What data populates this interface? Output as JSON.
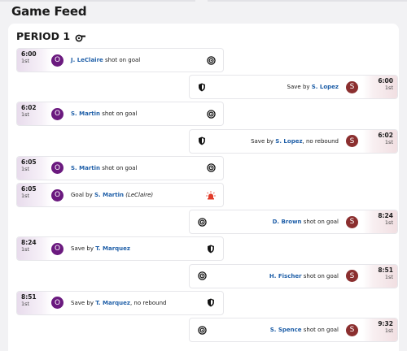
{
  "header": {
    "title": "Game Feed"
  },
  "period": {
    "title": "PERIOD 1",
    "icon": "whistle-icon"
  },
  "colors": {
    "home": "#6b1a7f",
    "away": "#8b2f2f",
    "link": "#1f5fa8"
  },
  "events": [
    {
      "side": "left",
      "time": "6:00",
      "period": "1st",
      "badge": "O",
      "pre": "",
      "player": "J. LeClaire",
      "post": " shot on goal",
      "assist": "",
      "icon": "target-icon"
    },
    {
      "side": "right",
      "time": "6:00",
      "period": "1st",
      "badge": "S",
      "pre": "Save by ",
      "player": "S. Lopez",
      "post": "",
      "assist": "",
      "icon": "shield-icon"
    },
    {
      "side": "left",
      "time": "6:02",
      "period": "1st",
      "badge": "O",
      "pre": "",
      "player": "S. Martin",
      "post": " shot on goal",
      "assist": "",
      "icon": "target-icon"
    },
    {
      "side": "right",
      "time": "6:02",
      "period": "1st",
      "badge": "S",
      "pre": "Save by ",
      "player": "S. Lopez",
      "post": ", no rebound",
      "assist": "",
      "icon": "shield-icon"
    },
    {
      "side": "left",
      "time": "6:05",
      "period": "1st",
      "badge": "O",
      "pre": "",
      "player": "S. Martin",
      "post": " shot on goal",
      "assist": "",
      "icon": "target-icon"
    },
    {
      "side": "left",
      "time": "6:05",
      "period": "1st",
      "badge": "O",
      "pre": "Goal by ",
      "player": "S. Martin",
      "post": " ",
      "assist": "(LeClaire)",
      "icon": "goal-light-icon"
    },
    {
      "side": "right",
      "time": "8:24",
      "period": "1st",
      "badge": "S",
      "pre": "",
      "player": "D. Brown",
      "post": " shot on goal",
      "assist": "",
      "icon": "target-icon"
    },
    {
      "side": "left",
      "time": "8:24",
      "period": "1st",
      "badge": "O",
      "pre": "Save by ",
      "player": "T. Marquez",
      "post": "",
      "assist": "",
      "icon": "shield-icon"
    },
    {
      "side": "right",
      "time": "8:51",
      "period": "1st",
      "badge": "S",
      "pre": "",
      "player": "H. Fischer",
      "post": " shot on goal",
      "assist": "",
      "icon": "target-icon"
    },
    {
      "side": "left",
      "time": "8:51",
      "period": "1st",
      "badge": "O",
      "pre": "Save by ",
      "player": "T. Marquez",
      "post": ", no rebound",
      "assist": "",
      "icon": "shield-icon"
    },
    {
      "side": "right",
      "time": "9:32",
      "period": "1st",
      "badge": "S",
      "pre": "",
      "player": "S. Spence",
      "post": " shot on goal",
      "assist": "",
      "icon": "target-icon"
    }
  ]
}
